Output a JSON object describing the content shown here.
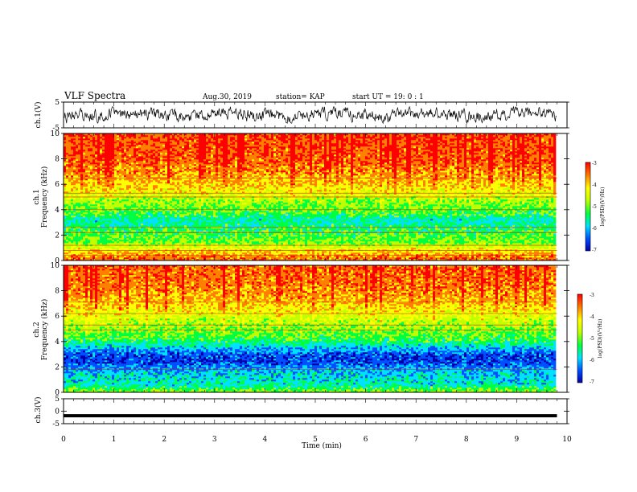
{
  "header": {
    "title": "VLF Spectra",
    "date": "Aug.30, 2019",
    "station": "station= KAP",
    "start": "start  UT =   19: 0  : 1"
  },
  "chart_data": [
    {
      "type": "line",
      "panel": "ch1-waveform",
      "ylabel": "ch.1(V)",
      "ylim": [
        -5,
        5
      ],
      "yticks": [
        "5",
        "-5"
      ],
      "xlim": [
        0,
        10
      ],
      "x_extent_min": 9.8,
      "color": "#000000",
      "amplitude_approx": 1.5
    },
    {
      "type": "heatmap",
      "panel": "ch1-spectrogram",
      "ylabel_channel": "ch.1",
      "ylabel": "Frequency (kHz)",
      "ylim": [
        0,
        10
      ],
      "yticks": [
        "0",
        "2",
        "4",
        "6",
        "8",
        "10"
      ],
      "xlim": [
        0,
        10
      ],
      "x_extent_min": 9.8,
      "colorbar": {
        "label": "log(PSD)(V²/Hz)",
        "range": [
          -7,
          -3
        ],
        "ticks": [
          "-3",
          "-4",
          "-5",
          "-6",
          "-7"
        ]
      },
      "level_profile": [
        {
          "f": 0.0,
          "v": -3.6
        },
        {
          "f": 0.4,
          "v": -3.8
        },
        {
          "f": 0.9,
          "v": -4.3
        },
        {
          "f": 1.4,
          "v": -5.0
        },
        {
          "f": 2.0,
          "v": -5.1
        },
        {
          "f": 2.6,
          "v": -5.3
        },
        {
          "f": 3.2,
          "v": -5.6
        },
        {
          "f": 3.6,
          "v": -5.2
        },
        {
          "f": 4.2,
          "v": -5.0
        },
        {
          "f": 4.8,
          "v": -4.8
        },
        {
          "f": 5.3,
          "v": -4.4
        },
        {
          "f": 6.0,
          "v": -4.1
        },
        {
          "f": 7.0,
          "v": -3.8
        },
        {
          "f": 8.0,
          "v": -3.6
        },
        {
          "f": 10.0,
          "v": -3.5
        }
      ],
      "tone_lines_khz": [
        0.4,
        0.8,
        1.2,
        2.2,
        2.6,
        4.0,
        5.0,
        5.3,
        6.5
      ]
    },
    {
      "type": "heatmap",
      "panel": "ch2-spectrogram",
      "ylabel_channel": "ch.2",
      "ylabel": "Frequency (kHz)",
      "ylim": [
        0,
        10
      ],
      "yticks": [
        "0",
        "2",
        "4",
        "6",
        "8",
        "10"
      ],
      "xlim": [
        0,
        10
      ],
      "x_extent_min": 9.8,
      "colorbar": {
        "label": "log(PSD)(V²/Hz)",
        "range": [
          -7,
          -3
        ],
        "ticks": [
          "-3",
          "-4",
          "-5",
          "-6",
          "-7"
        ]
      },
      "level_profile": [
        {
          "f": 0.0,
          "v": -4.8
        },
        {
          "f": 0.6,
          "v": -5.6
        },
        {
          "f": 1.2,
          "v": -5.7
        },
        {
          "f": 1.8,
          "v": -5.9
        },
        {
          "f": 2.4,
          "v": -6.4
        },
        {
          "f": 3.0,
          "v": -6.3
        },
        {
          "f": 3.6,
          "v": -5.7
        },
        {
          "f": 4.2,
          "v": -5.2
        },
        {
          "f": 5.0,
          "v": -4.9
        },
        {
          "f": 5.8,
          "v": -4.6
        },
        {
          "f": 6.6,
          "v": -4.2
        },
        {
          "f": 7.5,
          "v": -3.9
        },
        {
          "f": 8.5,
          "v": -3.7
        },
        {
          "f": 10.0,
          "v": -3.6
        }
      ],
      "tone_lines_khz": [
        1.8,
        4.9,
        5.3,
        6.2,
        7.1
      ]
    },
    {
      "type": "line",
      "panel": "ch3-waveform",
      "ylabel": "ch.3(V)",
      "ylim": [
        -5,
        5
      ],
      "yticks": [
        "5",
        "0",
        "-5"
      ],
      "xlim": [
        0,
        10
      ],
      "x_extent_min": 9.8,
      "constant_value": -1.8,
      "color": "#000000"
    }
  ],
  "xaxis": {
    "label": "Time  (min)",
    "ticks": [
      "0",
      "1",
      "2",
      "3",
      "4",
      "5",
      "6",
      "7",
      "8",
      "9",
      "10"
    ]
  },
  "colormap": [
    "#0000aa",
    "#0050ff",
    "#00e0ff",
    "#00ff40",
    "#c0ff00",
    "#ffff00",
    "#ff8000",
    "#ff0000"
  ]
}
